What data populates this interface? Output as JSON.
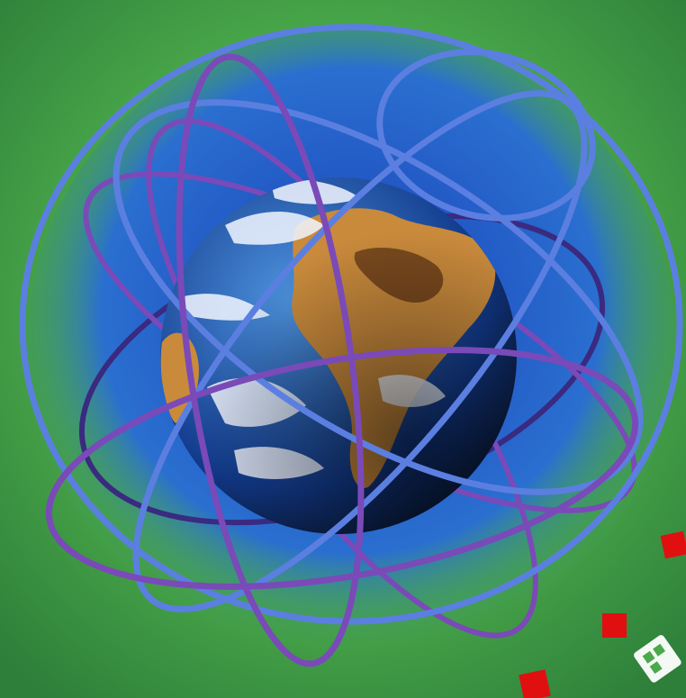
{
  "scene": {
    "subject": "earth-with-orbit-rings",
    "colors": {
      "background_light": "#7fd07a",
      "background_mid": "#4aa94a",
      "background_dark": "#2e7f3a",
      "space_inner": "#1a3fb8",
      "space_outer": "#2a6fd0",
      "ocean_light": "#4f95e0",
      "ocean_dark": "#123a8c",
      "land": "#c98a3c",
      "land_dark": "#7a4a1e",
      "cloud": "#f2f6ff",
      "ring_blue": "#5b7fe0",
      "ring_purple": "#7a4ab8",
      "ring_dark": "#3a2a80",
      "marker": "#e01010",
      "logo_fill": "#ffffff"
    },
    "markers": [
      "square-marker",
      "square-marker",
      "square-marker",
      "square-marker"
    ],
    "logo": {
      "icon": "corner-logo-icon"
    }
  }
}
